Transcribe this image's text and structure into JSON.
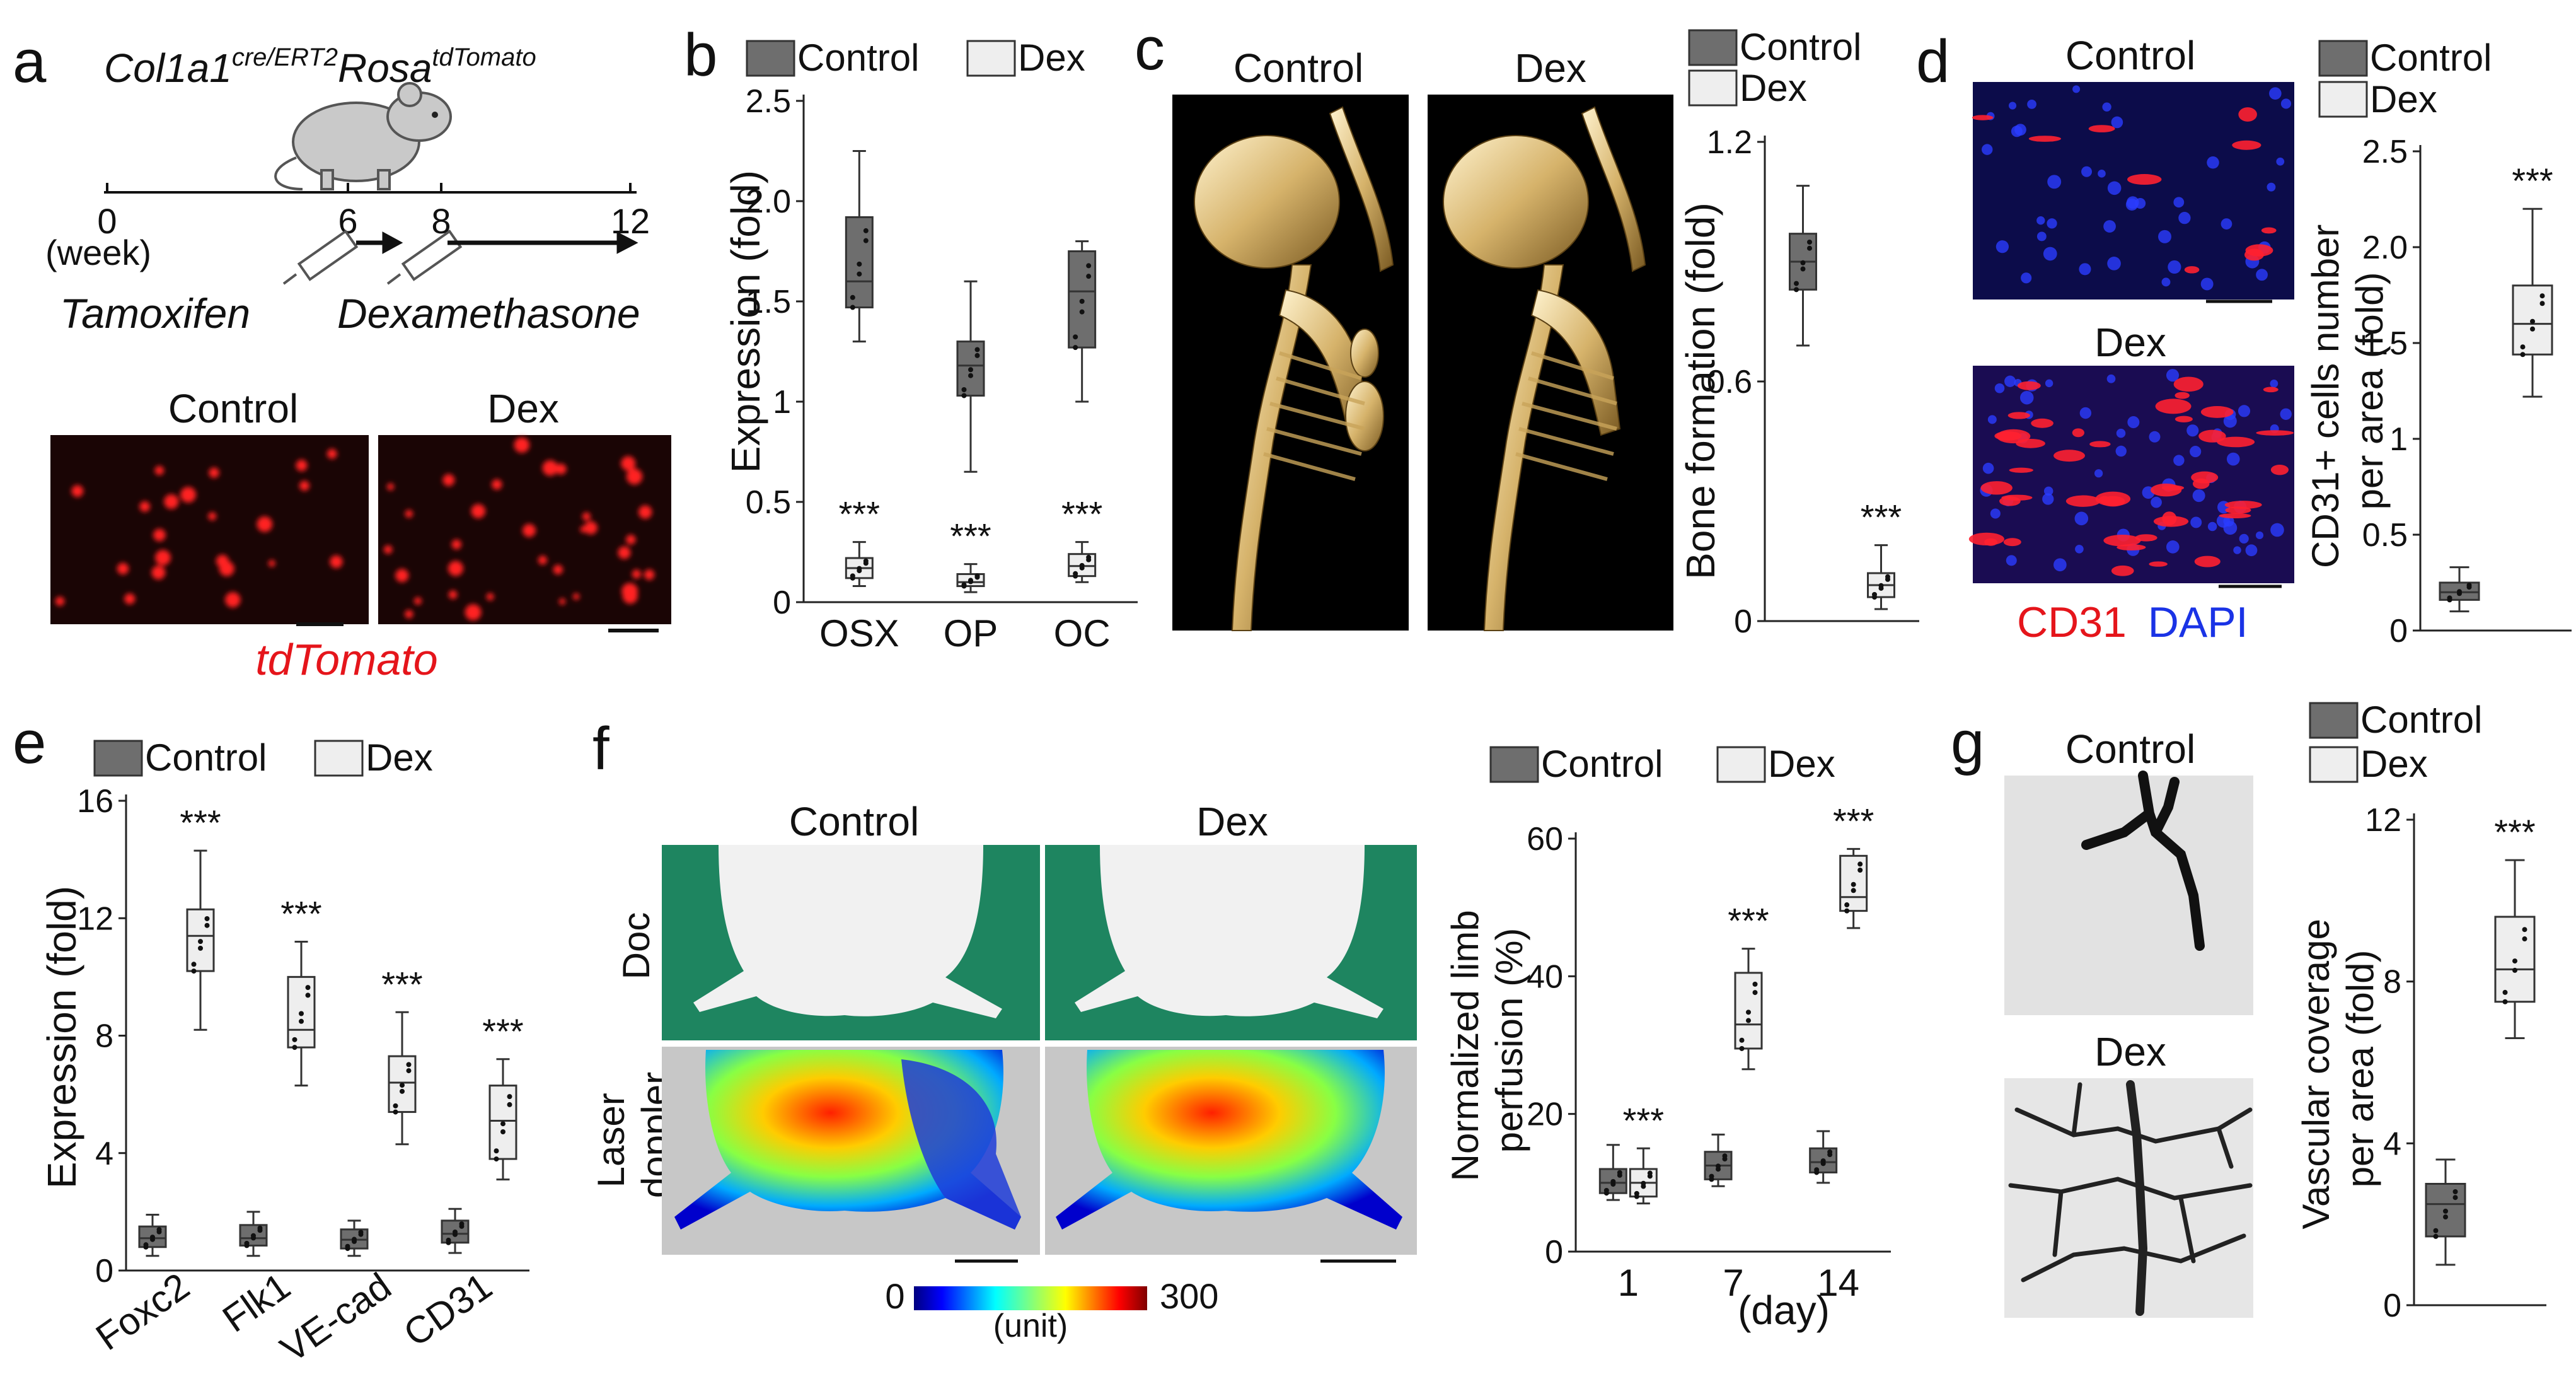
{
  "figure": {
    "panel_letters": [
      "a",
      "b",
      "c",
      "d",
      "e",
      "f",
      "g"
    ],
    "legend": {
      "control": "Control",
      "dex": "Dex"
    },
    "colors": {
      "control_fill": "#6e6e6e",
      "dex_fill": "#eeeeee",
      "stroke": "#333333",
      "red_label": "#e5151b",
      "blue_label": "#1a33e6",
      "green_bg": "#1e8560"
    }
  },
  "panel_a": {
    "mouse_genotype_main1": "Col1a1",
    "mouse_genotype_sup1": "cre/ERT2",
    "mouse_genotype_main2": "Rosa",
    "mouse_genotype_sup2": "tdTomato",
    "timeline_ticks": [
      "0",
      "6",
      "8",
      "12"
    ],
    "unit_label": "(week)",
    "drug1": "Tamoxifen",
    "drug2": "Dexamethasone",
    "image_titles": [
      "Control",
      "Dex"
    ],
    "stain_label": "tdTomato"
  },
  "panel_b": {
    "ylabel": "Expression (fold)",
    "yticks": [
      "0",
      "0.5",
      "1",
      "1.5",
      "2.0",
      "2.5"
    ],
    "categories": [
      "OSX",
      "OP",
      "OC"
    ],
    "sig": "***"
  },
  "panel_c": {
    "image_titles": [
      "Control",
      "Dex"
    ],
    "ylabel": "Bone formation (fold)",
    "yticks": [
      "0",
      "0.6",
      "1.2"
    ],
    "sig": "***"
  },
  "panel_d": {
    "image_titles": [
      "Control",
      "Dex"
    ],
    "stain_red": "CD31",
    "stain_blue": "DAPI",
    "ylabel_line1": "CD31+ cells number",
    "ylabel_line2": "per area (fold)",
    "yticks": [
      "0",
      "0.5",
      "1",
      "1.5",
      "2.0",
      "2.5"
    ],
    "sig": "***"
  },
  "panel_e": {
    "ylabel": "Expression (fold)",
    "yticks": [
      "0",
      "4",
      "8",
      "12",
      "16"
    ],
    "categories": [
      "Foxc2",
      "Flk1",
      "VE-cad",
      "CD31"
    ],
    "sig": "***"
  },
  "panel_f": {
    "column_titles": [
      "Control",
      "Dex"
    ],
    "row_label_top": "Doc",
    "row_label_bottom_1": "Laser",
    "row_label_bottom_2": "doppler",
    "colorbar_min": "0",
    "colorbar_max": "300",
    "colorbar_unit": "(unit)",
    "ylabel_line1": "Normalized  limb",
    "ylabel_line2": "perfusion (%)",
    "yticks": [
      "0",
      "20",
      "40",
      "60"
    ],
    "xticks": [
      "1",
      "7",
      "14"
    ],
    "xlabel": "(day)",
    "sig": "***"
  },
  "panel_g": {
    "image_titles": [
      "Control",
      "Dex"
    ],
    "ylabel_line1": "Vascular coverage",
    "ylabel_line2": "per area (fold)",
    "yticks": [
      "0",
      "4",
      "8",
      "12"
    ],
    "sig": "***"
  },
  "chart_data": [
    {
      "id": "b",
      "type": "box",
      "title": "",
      "xlabel": "",
      "ylabel": "Expression (fold)",
      "ylim": [
        0,
        2.5
      ],
      "categories": [
        "OSX",
        "OP",
        "OC"
      ],
      "series": [
        {
          "name": "Control",
          "boxes": [
            {
              "min": 1.3,
              "q1": 1.47,
              "median": 1.6,
              "q3": 1.92,
              "max": 2.25
            },
            {
              "min": 0.65,
              "q1": 1.03,
              "median": 1.18,
              "q3": 1.3,
              "max": 1.6
            },
            {
              "min": 1.0,
              "q1": 1.27,
              "median": 1.55,
              "q3": 1.75,
              "max": 1.8
            }
          ]
        },
        {
          "name": "Dex",
          "boxes": [
            {
              "min": 0.08,
              "q1": 0.12,
              "median": 0.17,
              "q3": 0.22,
              "max": 0.3
            },
            {
              "min": 0.05,
              "q1": 0.08,
              "median": 0.1,
              "q3": 0.14,
              "max": 0.19
            },
            {
              "min": 0.1,
              "q1": 0.13,
              "median": 0.18,
              "q3": 0.24,
              "max": 0.3
            }
          ]
        }
      ]
    },
    {
      "id": "c",
      "type": "box",
      "title": "",
      "xlabel": "",
      "ylabel": "Bone formation (fold)",
      "ylim": [
        0,
        1.2
      ],
      "categories": [
        ""
      ],
      "series": [
        {
          "name": "Control",
          "boxes": [
            {
              "min": 0.69,
              "q1": 0.83,
              "median": 0.9,
              "q3": 0.97,
              "max": 1.09
            }
          ]
        },
        {
          "name": "Dex",
          "boxes": [
            {
              "min": 0.03,
              "q1": 0.06,
              "median": 0.09,
              "q3": 0.12,
              "max": 0.19
            }
          ]
        }
      ]
    },
    {
      "id": "d",
      "type": "box",
      "title": "",
      "xlabel": "",
      "ylabel": "CD31+ cells number per area (fold)",
      "ylim": [
        0,
        2.5
      ],
      "categories": [
        ""
      ],
      "series": [
        {
          "name": "Control",
          "boxes": [
            {
              "min": 0.1,
              "q1": 0.16,
              "median": 0.2,
              "q3": 0.25,
              "max": 0.33
            }
          ]
        },
        {
          "name": "Dex",
          "boxes": [
            {
              "min": 1.22,
              "q1": 1.44,
              "median": 1.6,
              "q3": 1.8,
              "max": 2.2
            }
          ]
        }
      ]
    },
    {
      "id": "e",
      "type": "box",
      "title": "",
      "xlabel": "",
      "ylabel": "Expression (fold)",
      "ylim": [
        0,
        16
      ],
      "categories": [
        "Foxc2",
        "Flk1",
        "VE-cad",
        "CD31"
      ],
      "series": [
        {
          "name": "Control",
          "boxes": [
            {
              "min": 0.5,
              "q1": 0.8,
              "median": 1.1,
              "q3": 1.5,
              "max": 1.9
            },
            {
              "min": 0.5,
              "q1": 0.85,
              "median": 1.1,
              "q3": 1.55,
              "max": 2.0
            },
            {
              "min": 0.5,
              "q1": 0.75,
              "median": 1.05,
              "q3": 1.4,
              "max": 1.7
            },
            {
              "min": 0.6,
              "q1": 0.95,
              "median": 1.25,
              "q3": 1.7,
              "max": 2.1
            }
          ]
        },
        {
          "name": "Dex",
          "boxes": [
            {
              "min": 8.2,
              "q1": 10.2,
              "median": 11.4,
              "q3": 12.3,
              "max": 14.3
            },
            {
              "min": 6.3,
              "q1": 7.6,
              "median": 8.2,
              "q3": 10.0,
              "max": 11.2
            },
            {
              "min": 4.3,
              "q1": 5.4,
              "median": 6.4,
              "q3": 7.3,
              "max": 8.8
            },
            {
              "min": 3.1,
              "q1": 3.8,
              "median": 5.1,
              "q3": 6.3,
              "max": 7.2
            }
          ]
        }
      ]
    },
    {
      "id": "f",
      "type": "box",
      "title": "",
      "xlabel": "(day)",
      "ylabel": "Normalized  limb perfusion (%)",
      "ylim": [
        0,
        60
      ],
      "categories": [
        "1",
        "7",
        "14"
      ],
      "series": [
        {
          "name": "Control",
          "boxes": [
            {
              "min": 7.5,
              "q1": 8.5,
              "median": 10.0,
              "q3": 12.0,
              "max": 15.5
            },
            {
              "min": 9.5,
              "q1": 10.5,
              "median": 12.5,
              "q3": 14.5,
              "max": 17.0
            },
            {
              "min": 10.0,
              "q1": 11.5,
              "median": 13.0,
              "q3": 15.0,
              "max": 17.5
            }
          ]
        },
        {
          "name": "Dex",
          "boxes": [
            {
              "min": 7.0,
              "q1": 8.0,
              "median": 10.0,
              "q3": 12.0,
              "max": 15.0
            },
            {
              "min": 26.5,
              "q1": 29.5,
              "median": 33.0,
              "q3": 40.5,
              "max": 44.0
            },
            {
              "min": 47.0,
              "q1": 49.5,
              "median": 51.5,
              "q3": 57.5,
              "max": 58.5
            }
          ]
        }
      ]
    },
    {
      "id": "g",
      "type": "box",
      "title": "",
      "xlabel": "",
      "ylabel": "Vascular coverage per area (fold)",
      "ylim": [
        0,
        12
      ],
      "categories": [
        ""
      ],
      "series": [
        {
          "name": "Control",
          "boxes": [
            {
              "min": 1.0,
              "q1": 1.7,
              "median": 2.5,
              "q3": 3.0,
              "max": 3.6
            }
          ]
        },
        {
          "name": "Dex",
          "boxes": [
            {
              "min": 6.6,
              "q1": 7.5,
              "median": 8.3,
              "q3": 9.6,
              "max": 11.0
            }
          ]
        }
      ]
    }
  ]
}
